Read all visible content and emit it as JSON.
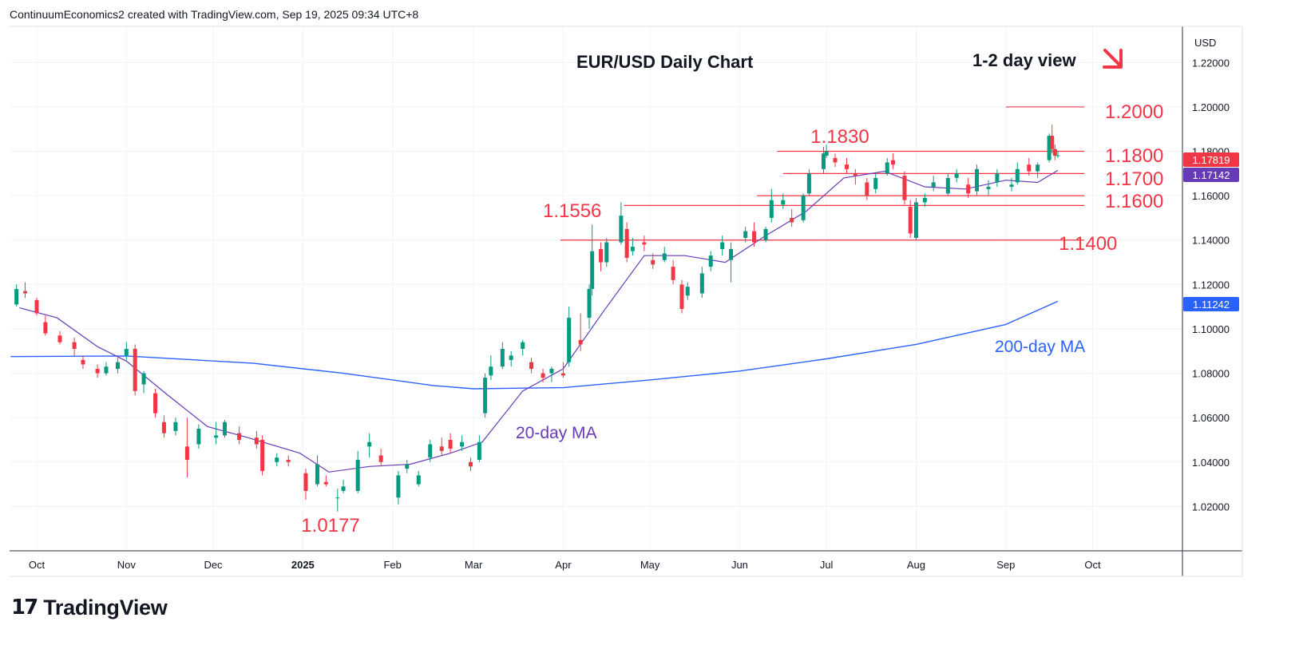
{
  "header": {
    "attribution": "ContinuumEconomics2 created with TradingView.com, Sep 19, 2025 09:34 UTC+8"
  },
  "footer": {
    "brand": "TradingView",
    "logo_glyph": "17"
  },
  "colors": {
    "up": "#089981",
    "down": "#f23645",
    "annotation": "#f23645",
    "ma20": "#673ab7",
    "ma200": "#2962ff",
    "grid": "#f0f3fa",
    "axis_text": "#131722",
    "ma20_badge": "#673ab7",
    "ma200_badge": "#2962ff"
  },
  "chart_data": {
    "type": "candlestick",
    "title": "EUR/USD Daily Chart",
    "view_label": "1-2 day view",
    "view_arrow_icon": "arrow-down-right-icon",
    "currency_label": "USD",
    "y_ticks": [
      "1.02000",
      "1.04000",
      "1.06000",
      "1.08000",
      "1.10000",
      "1.12000",
      "1.14000",
      "1.16000",
      "1.18000",
      "1.20000",
      "1.22000"
    ],
    "x_ticks": [
      "Oct",
      "Nov",
      "Dec",
      "2025",
      "Feb",
      "Mar",
      "Apr",
      "May",
      "Jun",
      "Jul",
      "Aug",
      "Sep",
      "Oct"
    ],
    "ylim": [
      1.0,
      1.2363
    ],
    "grid": true,
    "key_levels": [
      {
        "label": "1.2000",
        "value": 1.2,
        "x_start": "2025-09-01"
      },
      {
        "label": "1.1800",
        "value": 1.18,
        "x_start": "2025-06-14"
      },
      {
        "label": "1.1700",
        "value": 1.17,
        "x_start": "2025-06-16"
      },
      {
        "label": "1.1600",
        "value": 1.16,
        "x_start": "2025-06-07"
      },
      {
        "label": "1.1556",
        "value": 1.1556,
        "x_start": "2025-04-22"
      },
      {
        "label": "1.1400",
        "value": 1.14,
        "x_start": "2025-03-31"
      }
    ],
    "annotations": [
      {
        "label": "1.1830",
        "date": "2025-07-01",
        "value": 1.183
      },
      {
        "label": "1.0177",
        "date": "2025-01-13",
        "value": 1.0177
      }
    ],
    "price_badges": [
      {
        "label": "1.17819",
        "value": 1.17819,
        "series": "last_price"
      },
      {
        "label": "1.17142",
        "value": 1.17142,
        "series": "ma20"
      },
      {
        "label": "1.11242",
        "value": 1.11242,
        "series": "ma200"
      }
    ],
    "series": [
      {
        "name": "20-day MA",
        "points": [
          [
            "2024-09-25",
            1.1095
          ],
          [
            "2024-10-08",
            1.105
          ],
          [
            "2024-10-22",
            1.092
          ],
          [
            "2024-11-01",
            1.0855
          ],
          [
            "2024-11-15",
            1.0705
          ],
          [
            "2024-11-29",
            1.056
          ],
          [
            "2024-12-13",
            1.051
          ],
          [
            "2024-12-31",
            1.044
          ],
          [
            "2025-01-10",
            1.0355
          ],
          [
            "2025-01-24",
            1.038
          ],
          [
            "2025-02-07",
            1.039
          ],
          [
            "2025-02-21",
            1.044
          ],
          [
            "2025-03-04",
            1.049
          ],
          [
            "2025-03-18",
            1.072
          ],
          [
            "2025-04-01",
            1.082
          ],
          [
            "2025-04-15",
            1.108
          ],
          [
            "2025-04-29",
            1.133
          ],
          [
            "2025-05-13",
            1.133
          ],
          [
            "2025-05-27",
            1.13
          ],
          [
            "2025-06-10",
            1.142
          ],
          [
            "2025-06-24",
            1.153
          ],
          [
            "2025-07-07",
            1.168
          ],
          [
            "2025-07-21",
            1.171
          ],
          [
            "2025-08-04",
            1.164
          ],
          [
            "2025-08-18",
            1.163
          ],
          [
            "2025-09-01",
            1.167
          ],
          [
            "2025-09-12",
            1.166
          ],
          [
            "2025-09-19",
            1.17142
          ]
        ]
      },
      {
        "name": "200-day MA",
        "points": [
          [
            "2024-09-22",
            1.0875
          ],
          [
            "2024-11-01",
            1.0878
          ],
          [
            "2024-12-15",
            1.0845
          ],
          [
            "2025-01-15",
            1.08
          ],
          [
            "2025-02-15",
            1.0745
          ],
          [
            "2025-03-01",
            1.073
          ],
          [
            "2025-04-01",
            1.0735
          ],
          [
            "2025-05-01",
            1.077
          ],
          [
            "2025-06-01",
            1.081
          ],
          [
            "2025-07-01",
            1.0865
          ],
          [
            "2025-08-01",
            1.093
          ],
          [
            "2025-09-01",
            1.102
          ],
          [
            "2025-09-19",
            1.11242
          ]
        ]
      },
      {
        "name": "EUR/USD",
        "ohlc": [
          [
            "2024-09-24",
            1.111,
            1.12,
            1.11,
            1.118
          ],
          [
            "2024-09-27",
            1.117,
            1.121,
            1.114,
            1.116
          ],
          [
            "2024-10-01",
            1.113,
            1.114,
            1.106,
            1.107
          ],
          [
            "2024-10-04",
            1.103,
            1.106,
            1.097,
            1.098
          ],
          [
            "2024-10-09",
            1.097,
            1.099,
            1.093,
            1.094
          ],
          [
            "2024-10-14",
            1.094,
            1.096,
            1.088,
            1.091
          ],
          [
            "2024-10-17",
            1.086,
            1.088,
            1.082,
            1.084
          ],
          [
            "2024-10-22",
            1.082,
            1.084,
            1.078,
            1.08
          ],
          [
            "2024-10-25",
            1.08,
            1.085,
            1.079,
            1.083
          ],
          [
            "2024-10-29",
            1.082,
            1.087,
            1.08,
            1.085
          ],
          [
            "2024-11-01",
            1.088,
            1.094,
            1.086,
            1.091
          ],
          [
            "2024-11-04",
            1.091,
            1.093,
            1.07,
            1.072
          ],
          [
            "2024-11-07",
            1.075,
            1.081,
            1.071,
            1.08
          ],
          [
            "2024-11-11",
            1.071,
            1.073,
            1.06,
            1.062
          ],
          [
            "2024-11-14",
            1.058,
            1.061,
            1.051,
            1.053
          ],
          [
            "2024-11-18",
            1.054,
            1.06,
            1.052,
            1.058
          ],
          [
            "2024-11-22",
            1.047,
            1.06,
            1.033,
            1.041
          ],
          [
            "2024-11-26",
            1.048,
            1.057,
            1.046,
            1.055
          ],
          [
            "2024-12-02",
            1.051,
            1.058,
            1.048,
            1.052
          ],
          [
            "2024-12-05",
            1.052,
            1.059,
            1.051,
            1.058
          ],
          [
            "2024-12-10",
            1.053,
            1.056,
            1.048,
            1.05
          ],
          [
            "2024-12-16",
            1.051,
            1.054,
            1.046,
            1.048
          ],
          [
            "2024-12-18",
            1.05,
            1.052,
            1.034,
            1.036
          ],
          [
            "2024-12-23",
            1.04,
            1.044,
            1.038,
            1.042
          ],
          [
            "2024-12-27",
            1.041,
            1.043,
            1.038,
            1.04
          ],
          [
            "2025-01-02",
            1.035,
            1.037,
            1.023,
            1.027
          ],
          [
            "2025-01-06",
            1.03,
            1.043,
            1.029,
            1.039
          ],
          [
            "2025-01-09",
            1.031,
            1.034,
            1.029,
            1.03
          ],
          [
            "2025-01-13",
            1.024,
            1.028,
            1.0177,
            1.024
          ],
          [
            "2025-01-15",
            1.027,
            1.032,
            1.026,
            1.029
          ],
          [
            "2025-01-20",
            1.027,
            1.045,
            1.026,
            1.041
          ],
          [
            "2025-01-24",
            1.047,
            1.053,
            1.042,
            1.049
          ],
          [
            "2025-01-28",
            1.043,
            1.046,
            1.038,
            1.04
          ],
          [
            "2025-02-03",
            1.024,
            1.036,
            1.021,
            1.034
          ],
          [
            "2025-02-06",
            1.037,
            1.041,
            1.035,
            1.039
          ],
          [
            "2025-02-10",
            1.03,
            1.036,
            1.029,
            1.034
          ],
          [
            "2025-02-14",
            1.042,
            1.05,
            1.04,
            1.048
          ],
          [
            "2025-02-18",
            1.047,
            1.051,
            1.043,
            1.045
          ],
          [
            "2025-02-21",
            1.05,
            1.053,
            1.044,
            1.046
          ],
          [
            "2025-02-25",
            1.047,
            1.052,
            1.045,
            1.049
          ],
          [
            "2025-02-28",
            1.04,
            1.042,
            1.036,
            1.038
          ],
          [
            "2025-03-03",
            1.041,
            1.052,
            1.04,
            1.049
          ],
          [
            "2025-03-05",
            1.062,
            1.08,
            1.06,
            1.078
          ],
          [
            "2025-03-07",
            1.079,
            1.088,
            1.077,
            1.083
          ],
          [
            "2025-03-11",
            1.083,
            1.094,
            1.082,
            1.091
          ],
          [
            "2025-03-14",
            1.086,
            1.09,
            1.083,
            1.088
          ],
          [
            "2025-03-18",
            1.091,
            1.095,
            1.088,
            1.094
          ],
          [
            "2025-03-21",
            1.085,
            1.087,
            1.08,
            1.082
          ],
          [
            "2025-03-25",
            1.08,
            1.082,
            1.076,
            1.078
          ],
          [
            "2025-03-28",
            1.08,
            1.083,
            1.076,
            1.082
          ],
          [
            "2025-04-01",
            1.08,
            1.085,
            1.078,
            1.079
          ],
          [
            "2025-04-03",
            1.085,
            1.11,
            1.083,
            1.105
          ],
          [
            "2025-04-07",
            1.095,
            1.107,
            1.09,
            1.093
          ],
          [
            "2025-04-10",
            1.105,
            1.12,
            1.1,
            1.118
          ],
          [
            "2025-04-11",
            1.118,
            1.147,
            1.115,
            1.135
          ],
          [
            "2025-04-14",
            1.136,
            1.139,
            1.126,
            1.13
          ],
          [
            "2025-04-16",
            1.13,
            1.141,
            1.128,
            1.139
          ],
          [
            "2025-04-21",
            1.139,
            1.157,
            1.138,
            1.151
          ],
          [
            "2025-04-23",
            1.145,
            1.148,
            1.13,
            1.132
          ],
          [
            "2025-04-25",
            1.135,
            1.141,
            1.133,
            1.137
          ],
          [
            "2025-04-29",
            1.139,
            1.142,
            1.135,
            1.138
          ],
          [
            "2025-05-02",
            1.131,
            1.134,
            1.127,
            1.129
          ],
          [
            "2025-05-06",
            1.131,
            1.137,
            1.13,
            1.134
          ],
          [
            "2025-05-09",
            1.128,
            1.131,
            1.12,
            1.122
          ],
          [
            "2025-05-12",
            1.12,
            1.122,
            1.107,
            1.109
          ],
          [
            "2025-05-14",
            1.115,
            1.121,
            1.113,
            1.119
          ],
          [
            "2025-05-19",
            1.116,
            1.128,
            1.114,
            1.125
          ],
          [
            "2025-05-22",
            1.128,
            1.135,
            1.126,
            1.133
          ],
          [
            "2025-05-26",
            1.136,
            1.142,
            1.133,
            1.139
          ],
          [
            "2025-05-29",
            1.131,
            1.139,
            1.121,
            1.136
          ],
          [
            "2025-06-03",
            1.141,
            1.146,
            1.139,
            1.144
          ],
          [
            "2025-06-06",
            1.144,
            1.148,
            1.137,
            1.139
          ],
          [
            "2025-06-10",
            1.14,
            1.146,
            1.139,
            1.145
          ],
          [
            "2025-06-12",
            1.15,
            1.163,
            1.148,
            1.158
          ],
          [
            "2025-06-16",
            1.156,
            1.161,
            1.154,
            1.158
          ],
          [
            "2025-06-19",
            1.15,
            1.154,
            1.146,
            1.148
          ],
          [
            "2025-06-23",
            1.149,
            1.161,
            1.148,
            1.16
          ],
          [
            "2025-06-25",
            1.161,
            1.172,
            1.16,
            1.17
          ],
          [
            "2025-06-30",
            1.172,
            1.182,
            1.17,
            1.179
          ],
          [
            "2025-07-01",
            1.178,
            1.183,
            1.177,
            1.18
          ],
          [
            "2025-07-04",
            1.177,
            1.179,
            1.173,
            1.175
          ],
          [
            "2025-07-08",
            1.174,
            1.177,
            1.17,
            1.172
          ],
          [
            "2025-07-11",
            1.17,
            1.172,
            1.165,
            1.169
          ],
          [
            "2025-07-15",
            1.166,
            1.168,
            1.158,
            1.16
          ],
          [
            "2025-07-18",
            1.163,
            1.17,
            1.161,
            1.168
          ],
          [
            "2025-07-22",
            1.17,
            1.177,
            1.169,
            1.175
          ],
          [
            "2025-07-24",
            1.176,
            1.179,
            1.172,
            1.174
          ],
          [
            "2025-07-28",
            1.169,
            1.171,
            1.156,
            1.158
          ],
          [
            "2025-07-30",
            1.155,
            1.158,
            1.141,
            1.143
          ],
          [
            "2025-08-01",
            1.141,
            1.159,
            1.14,
            1.157
          ],
          [
            "2025-08-04",
            1.157,
            1.161,
            1.155,
            1.159
          ],
          [
            "2025-08-07",
            1.164,
            1.169,
            1.162,
            1.166
          ],
          [
            "2025-08-12",
            1.161,
            1.17,
            1.16,
            1.168
          ],
          [
            "2025-08-15",
            1.168,
            1.172,
            1.166,
            1.17
          ],
          [
            "2025-08-19",
            1.165,
            1.168,
            1.159,
            1.161
          ],
          [
            "2025-08-22",
            1.162,
            1.174,
            1.16,
            1.172
          ],
          [
            "2025-08-26",
            1.163,
            1.167,
            1.16,
            1.164
          ],
          [
            "2025-08-29",
            1.166,
            1.172,
            1.164,
            1.17
          ],
          [
            "2025-09-03",
            1.164,
            1.168,
            1.162,
            1.165
          ],
          [
            "2025-09-05",
            1.166,
            1.175,
            1.165,
            1.172
          ],
          [
            "2025-09-09",
            1.174,
            1.177,
            1.169,
            1.171
          ],
          [
            "2025-09-12",
            1.171,
            1.175,
            1.168,
            1.174
          ],
          [
            "2025-09-16",
            1.176,
            1.188,
            1.175,
            1.187
          ],
          [
            "2025-09-17",
            1.187,
            1.192,
            1.179,
            1.181
          ],
          [
            "2025-09-18",
            1.181,
            1.183,
            1.176,
            1.178
          ],
          [
            "2025-09-19",
            1.178,
            1.18,
            1.177,
            1.17819
          ]
        ]
      }
    ],
    "ma_labels": [
      {
        "label": "20-day MA",
        "series": "ma20"
      },
      {
        "label": "200-day MA",
        "series": "ma200"
      }
    ]
  }
}
